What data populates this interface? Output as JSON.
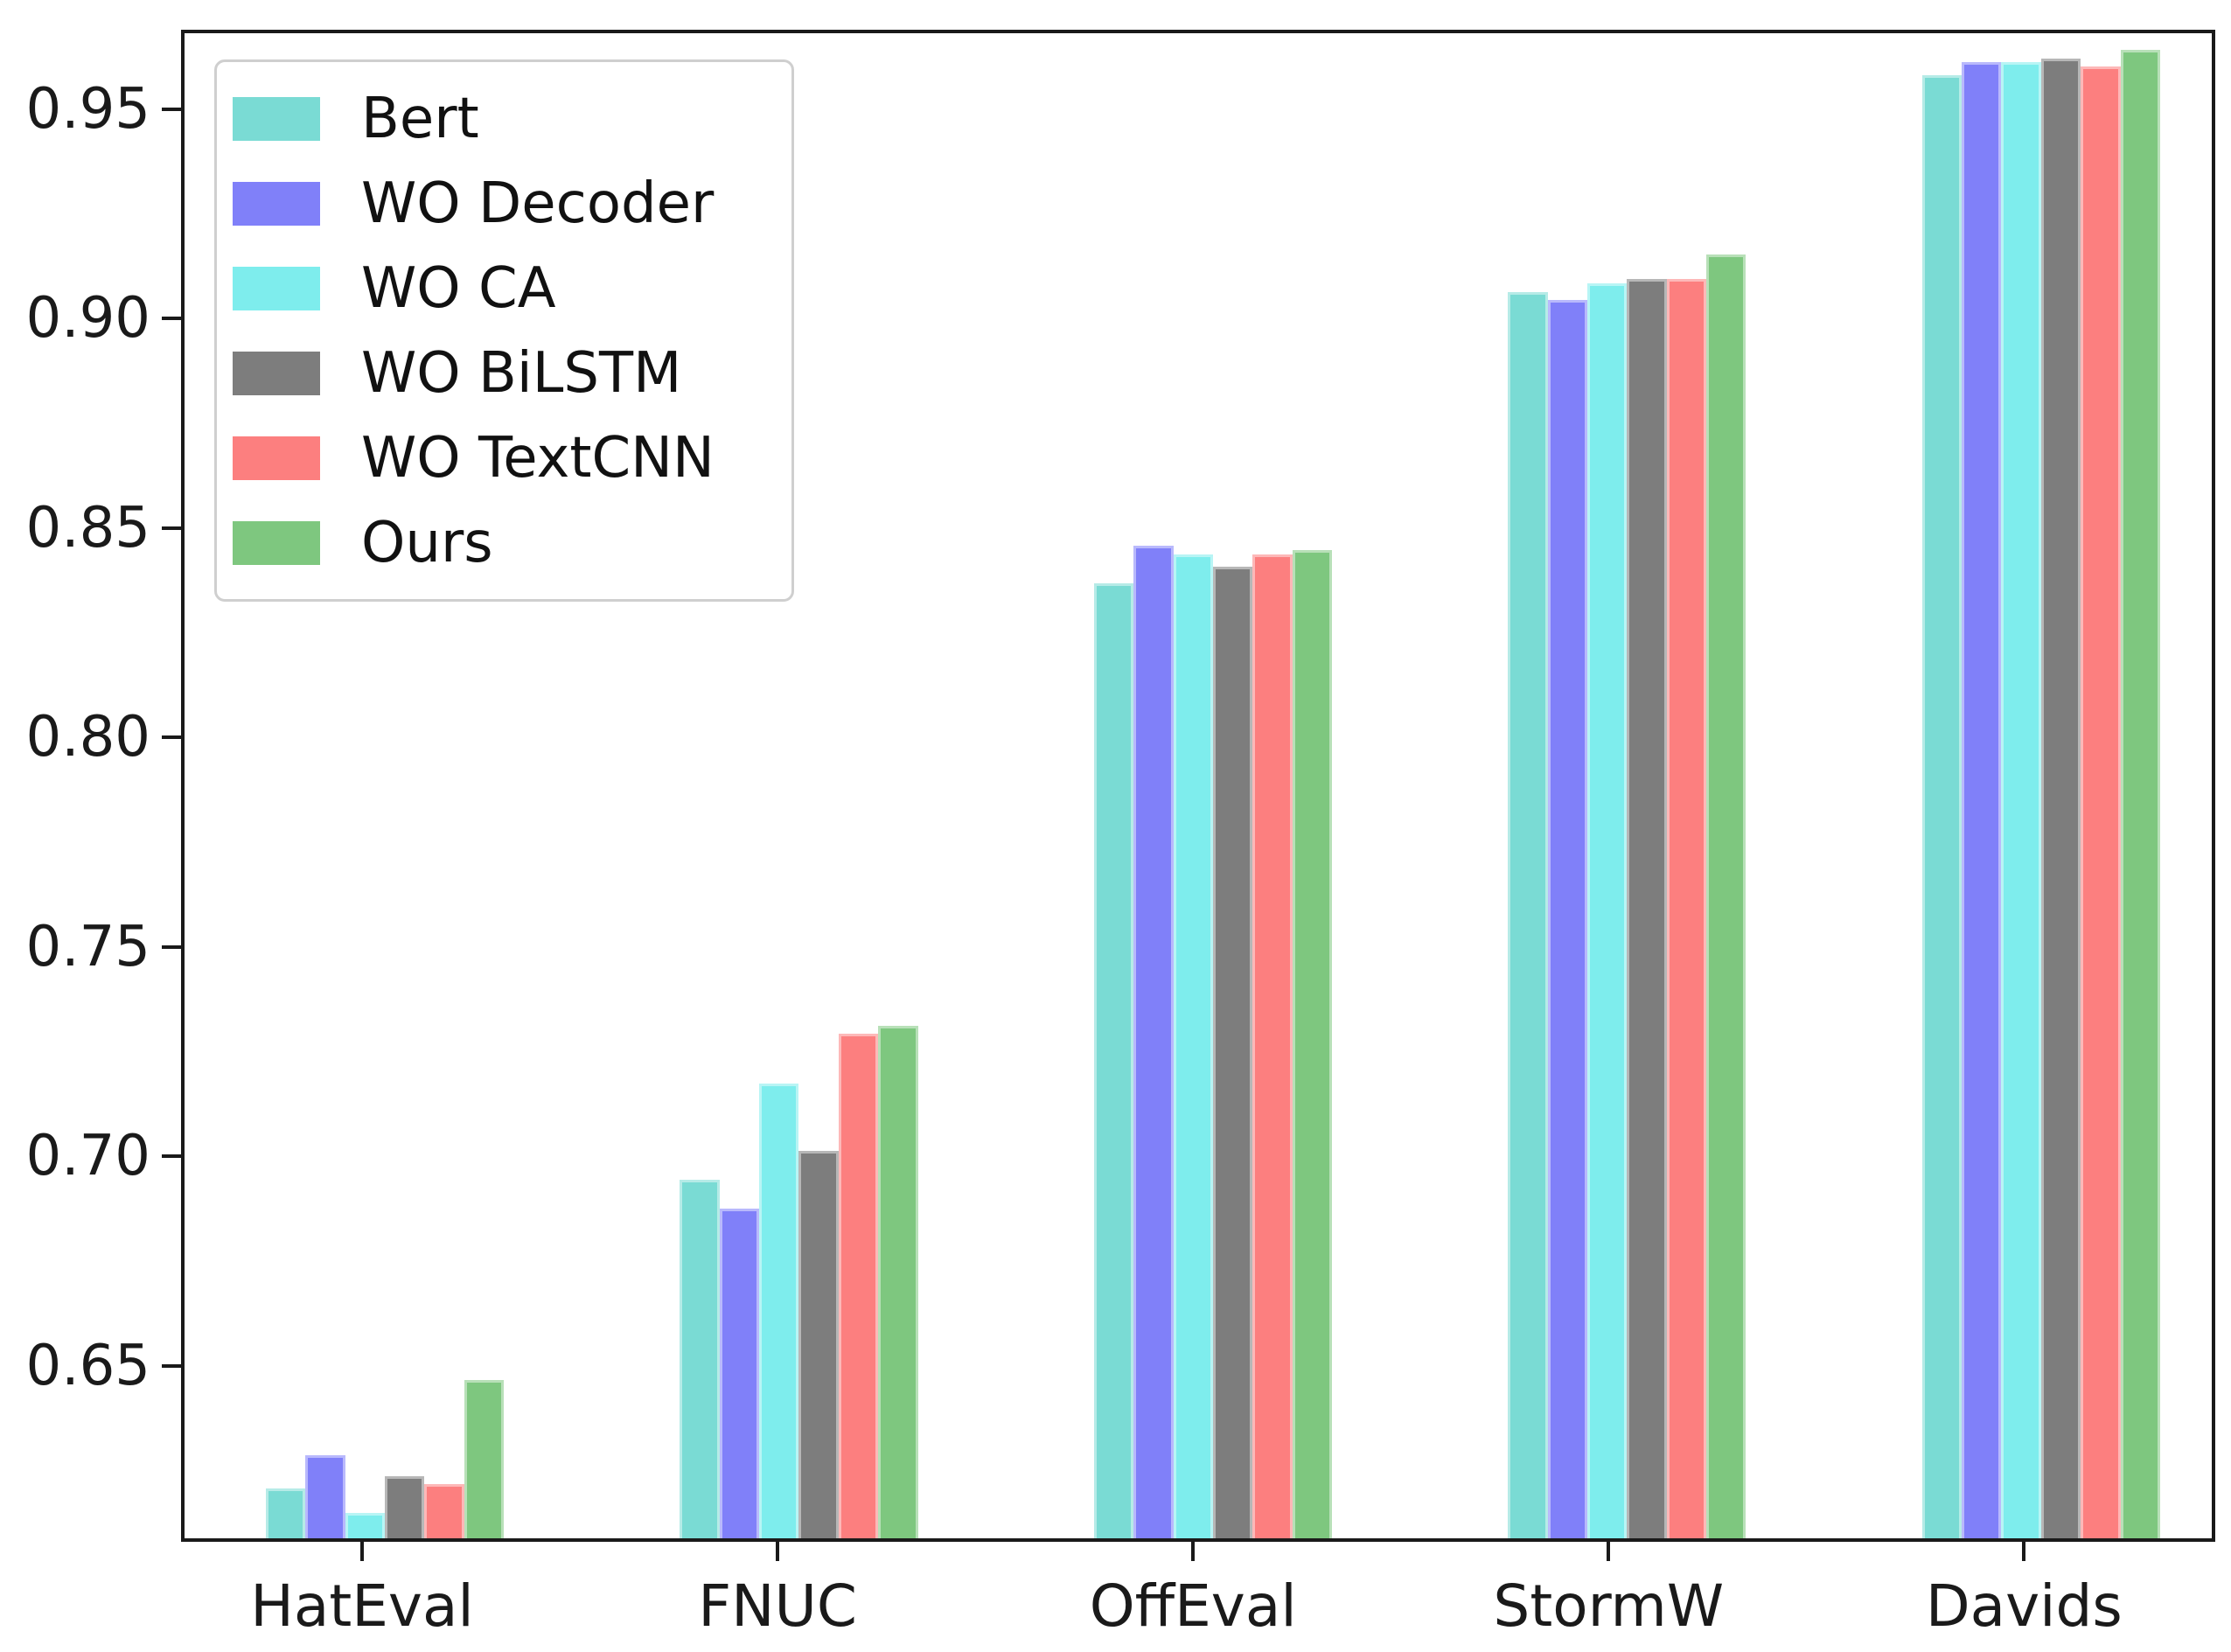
{
  "chart_data": {
    "type": "bar",
    "title": "",
    "xlabel": "",
    "ylabel": "",
    "categories": [
      "HatEval",
      "FNUC",
      "OffEval",
      "StormW",
      "Davids"
    ],
    "series": [
      {
        "name": "Bert",
        "color": "#7adbd4",
        "values": [
          0.62,
          0.694,
          0.837,
          0.907,
          0.959
        ]
      },
      {
        "name": "WO Decoder",
        "color": "#8080f9",
        "values": [
          0.628,
          0.687,
          0.846,
          0.905,
          0.962
        ]
      },
      {
        "name": "WO CA",
        "color": "#7eeded",
        "values": [
          0.614,
          0.717,
          0.844,
          0.909,
          0.962
        ]
      },
      {
        "name": "WO BiLSTM",
        "color": "#7d7d7d",
        "values": [
          0.623,
          0.701,
          0.841,
          0.91,
          0.963
        ]
      },
      {
        "name": "WO TextCNN",
        "color": "#fc7f7f",
        "values": [
          0.621,
          0.729,
          0.844,
          0.91,
          0.961
        ]
      },
      {
        "name": "Ours",
        "color": "#7ec77f",
        "values": [
          0.646,
          0.731,
          0.845,
          0.916,
          0.965
        ]
      }
    ],
    "ylim": [
      0.608,
      0.969
    ],
    "yticks": [
      0.65,
      0.7,
      0.75,
      0.8,
      0.85,
      0.9,
      0.95
    ],
    "legend_position": "upper-left",
    "grid": false,
    "axis_color": "#1a1a1a"
  }
}
